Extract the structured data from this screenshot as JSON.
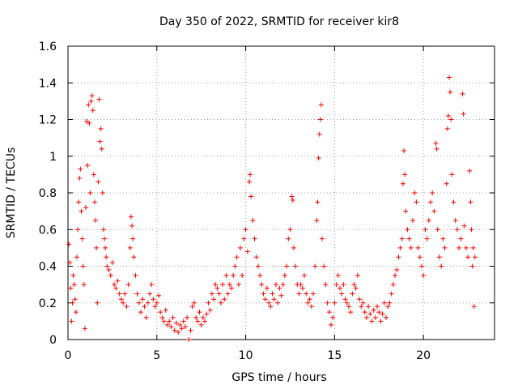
{
  "chart_data": {
    "type": "scatter",
    "title": "Day 350 of 2022, SRMTID for receiver kir8",
    "xlabel": "GPS time / hours",
    "ylabel": "SRMTID / TECUs",
    "xlim": [
      0,
      24
    ],
    "ylim": [
      0,
      1.6
    ],
    "xticks": [
      0,
      5,
      10,
      15,
      20
    ],
    "yticks": [
      0,
      0.2,
      0.4,
      0.6,
      0.8,
      1,
      1.2,
      1.4,
      1.6
    ],
    "xtick_labels": [
      "0",
      "5",
      "10",
      "15",
      "20"
    ],
    "ytick_labels": [
      "0",
      "0.2",
      "0.4",
      "0.6",
      "0.8",
      "1",
      "1.2",
      "1.4",
      "1.6"
    ],
    "grid": true,
    "marker": "+",
    "color": "#ff0000",
    "series": [
      {
        "name": "SRMTID",
        "points": [
          [
            0.05,
            0.52
          ],
          [
            0.1,
            0.42
          ],
          [
            0.15,
            0.28
          ],
          [
            0.2,
            0.1
          ],
          [
            0.25,
            0.2
          ],
          [
            0.3,
            0.35
          ],
          [
            0.35,
            0.3
          ],
          [
            0.4,
            0.22
          ],
          [
            0.45,
            0.15
          ],
          [
            0.5,
            0.45
          ],
          [
            0.55,
            0.6
          ],
          [
            0.6,
            0.75
          ],
          [
            0.65,
            0.88
          ],
          [
            0.7,
            0.93
          ],
          [
            0.75,
            0.7
          ],
          [
            0.8,
            0.55
          ],
          [
            0.85,
            0.4
          ],
          [
            0.9,
            0.3
          ],
          [
            0.95,
            0.06
          ],
          [
            1.0,
            0.72
          ],
          [
            1.05,
            1.19
          ],
          [
            1.1,
            0.95
          ],
          [
            1.15,
            1.28
          ],
          [
            1.2,
            1.18
          ],
          [
            1.25,
            0.8
          ],
          [
            1.3,
            1.3
          ],
          [
            1.35,
            1.33
          ],
          [
            1.4,
            1.25
          ],
          [
            1.45,
            0.9
          ],
          [
            1.5,
            0.75
          ],
          [
            1.55,
            0.65
          ],
          [
            1.6,
            0.5
          ],
          [
            1.65,
            0.2
          ],
          [
            1.7,
            0.86
          ],
          [
            1.75,
            1.31
          ],
          [
            1.8,
            1.08
          ],
          [
            1.85,
            1.15
          ],
          [
            1.9,
            1.04
          ],
          [
            1.95,
            0.8
          ],
          [
            2.0,
            0.6
          ],
          [
            2.05,
            0.55
          ],
          [
            2.1,
            0.5
          ],
          [
            2.15,
            0.45
          ],
          [
            2.2,
            0.4
          ],
          [
            2.3,
            0.38
          ],
          [
            2.4,
            0.35
          ],
          [
            2.5,
            0.42
          ],
          [
            2.6,
            0.3
          ],
          [
            2.7,
            0.28
          ],
          [
            2.8,
            0.32
          ],
          [
            2.9,
            0.25
          ],
          [
            3.0,
            0.22
          ],
          [
            3.1,
            0.2
          ],
          [
            3.2,
            0.25
          ],
          [
            3.3,
            0.18
          ],
          [
            3.4,
            0.3
          ],
          [
            3.5,
            0.5
          ],
          [
            3.55,
            0.67
          ],
          [
            3.6,
            0.62
          ],
          [
            3.65,
            0.55
          ],
          [
            3.7,
            0.45
          ],
          [
            3.8,
            0.35
          ],
          [
            3.9,
            0.25
          ],
          [
            4.0,
            0.2
          ],
          [
            4.1,
            0.15
          ],
          [
            4.2,
            0.22
          ],
          [
            4.3,
            0.18
          ],
          [
            4.4,
            0.12
          ],
          [
            4.5,
            0.2
          ],
          [
            4.6,
            0.25
          ],
          [
            4.7,
            0.3
          ],
          [
            4.8,
            0.22
          ],
          [
            4.9,
            0.18
          ],
          [
            5.0,
            0.2
          ],
          [
            5.1,
            0.24
          ],
          [
            5.2,
            0.15
          ],
          [
            5.3,
            0.12
          ],
          [
            5.4,
            0.1
          ],
          [
            5.5,
            0.16
          ],
          [
            5.6,
            0.08
          ],
          [
            5.7,
            0.1
          ],
          [
            5.8,
            0.07
          ],
          [
            5.9,
            0.12
          ],
          [
            6.0,
            0.05
          ],
          [
            6.1,
            0.09
          ],
          [
            6.2,
            0.04
          ],
          [
            6.3,
            0.08
          ],
          [
            6.4,
            0.06
          ],
          [
            6.5,
            0.1
          ],
          [
            6.6,
            0.07
          ],
          [
            6.7,
            0.12
          ],
          [
            6.8,
            0.0
          ],
          [
            6.9,
            0.05
          ],
          [
            7.0,
            0.18
          ],
          [
            7.1,
            0.2
          ],
          [
            7.2,
            0.12
          ],
          [
            7.3,
            0.1
          ],
          [
            7.4,
            0.15
          ],
          [
            7.5,
            0.08
          ],
          [
            7.6,
            0.12
          ],
          [
            7.7,
            0.1
          ],
          [
            7.8,
            0.14
          ],
          [
            7.9,
            0.2
          ],
          [
            8.0,
            0.16
          ],
          [
            8.1,
            0.25
          ],
          [
            8.2,
            0.22
          ],
          [
            8.3,
            0.3
          ],
          [
            8.4,
            0.28
          ],
          [
            8.5,
            0.25
          ],
          [
            8.6,
            0.2
          ],
          [
            8.7,
            0.3
          ],
          [
            8.8,
            0.22
          ],
          [
            8.9,
            0.35
          ],
          [
            9.0,
            0.25
          ],
          [
            9.1,
            0.3
          ],
          [
            9.2,
            0.28
          ],
          [
            9.3,
            0.35
          ],
          [
            9.4,
            0.4
          ],
          [
            9.5,
            0.45
          ],
          [
            9.6,
            0.3
          ],
          [
            9.7,
            0.5
          ],
          [
            9.8,
            0.35
          ],
          [
            9.9,
            0.55
          ],
          [
            10.0,
            0.6
          ],
          [
            10.1,
            0.48
          ],
          [
            10.2,
            0.86
          ],
          [
            10.25,
            0.9
          ],
          [
            10.3,
            0.78
          ],
          [
            10.4,
            0.65
          ],
          [
            10.5,
            0.55
          ],
          [
            10.6,
            0.45
          ],
          [
            10.7,
            0.4
          ],
          [
            10.8,
            0.35
          ],
          [
            10.9,
            0.3
          ],
          [
            11.0,
            0.25
          ],
          [
            11.1,
            0.22
          ],
          [
            11.2,
            0.28
          ],
          [
            11.3,
            0.2
          ],
          [
            11.4,
            0.18
          ],
          [
            11.5,
            0.25
          ],
          [
            11.6,
            0.22
          ],
          [
            11.7,
            0.3
          ],
          [
            11.8,
            0.2
          ],
          [
            11.9,
            0.28
          ],
          [
            12.0,
            0.24
          ],
          [
            12.1,
            0.3
          ],
          [
            12.2,
            0.35
          ],
          [
            12.3,
            0.4
          ],
          [
            12.4,
            0.55
          ],
          [
            12.5,
            0.6
          ],
          [
            12.6,
            0.78
          ],
          [
            12.65,
            0.76
          ],
          [
            12.7,
            0.5
          ],
          [
            12.8,
            0.4
          ],
          [
            12.9,
            0.3
          ],
          [
            13.0,
            0.25
          ],
          [
            13.1,
            0.3
          ],
          [
            13.2,
            0.28
          ],
          [
            13.3,
            0.35
          ],
          [
            13.4,
            0.25
          ],
          [
            13.5,
            0.2
          ],
          [
            13.6,
            0.22
          ],
          [
            13.7,
            0.18
          ],
          [
            13.8,
            0.25
          ],
          [
            13.9,
            0.4
          ],
          [
            14.0,
            0.65
          ],
          [
            14.05,
            0.75
          ],
          [
            14.1,
            0.99
          ],
          [
            14.15,
            1.12
          ],
          [
            14.2,
            1.2
          ],
          [
            14.25,
            1.28
          ],
          [
            14.3,
            0.55
          ],
          [
            14.4,
            0.4
          ],
          [
            14.5,
            0.3
          ],
          [
            14.6,
            0.2
          ],
          [
            14.7,
            0.15
          ],
          [
            14.8,
            0.08
          ],
          [
            14.9,
            0.12
          ],
          [
            15.0,
            0.2
          ],
          [
            15.1,
            0.3
          ],
          [
            15.2,
            0.35
          ],
          [
            15.3,
            0.28
          ],
          [
            15.4,
            0.25
          ],
          [
            15.5,
            0.3
          ],
          [
            15.6,
            0.22
          ],
          [
            15.7,
            0.2
          ],
          [
            15.8,
            0.18
          ],
          [
            15.9,
            0.15
          ],
          [
            16.0,
            0.25
          ],
          [
            16.1,
            0.3
          ],
          [
            16.2,
            0.28
          ],
          [
            16.3,
            0.35
          ],
          [
            16.4,
            0.22
          ],
          [
            16.5,
            0.18
          ],
          [
            16.6,
            0.2
          ],
          [
            16.7,
            0.15
          ],
          [
            16.8,
            0.12
          ],
          [
            16.9,
            0.18
          ],
          [
            17.0,
            0.14
          ],
          [
            17.1,
            0.1
          ],
          [
            17.2,
            0.16
          ],
          [
            17.3,
            0.12
          ],
          [
            17.4,
            0.18
          ],
          [
            17.5,
            0.15
          ],
          [
            17.6,
            0.1
          ],
          [
            17.7,
            0.14
          ],
          [
            17.8,
            0.2
          ],
          [
            17.9,
            0.12
          ],
          [
            18.0,
            0.18
          ],
          [
            18.1,
            0.2
          ],
          [
            18.2,
            0.25
          ],
          [
            18.3,
            0.3
          ],
          [
            18.4,
            0.35
          ],
          [
            18.5,
            0.38
          ],
          [
            18.6,
            0.45
          ],
          [
            18.7,
            0.5
          ],
          [
            18.8,
            0.55
          ],
          [
            18.85,
            0.85
          ],
          [
            18.9,
            1.03
          ],
          [
            18.95,
            0.9
          ],
          [
            19.0,
            0.7
          ],
          [
            19.1,
            0.6
          ],
          [
            19.2,
            0.55
          ],
          [
            19.3,
            0.5
          ],
          [
            19.4,
            0.65
          ],
          [
            19.5,
            0.8
          ],
          [
            19.6,
            0.75
          ],
          [
            19.7,
            0.5
          ],
          [
            19.8,
            0.45
          ],
          [
            19.9,
            0.4
          ],
          [
            20.0,
            0.35
          ],
          [
            20.1,
            0.6
          ],
          [
            20.2,
            0.55
          ],
          [
            20.3,
            0.65
          ],
          [
            20.4,
            0.75
          ],
          [
            20.5,
            0.8
          ],
          [
            20.6,
            0.7
          ],
          [
            20.7,
            1.07
          ],
          [
            20.75,
            1.04
          ],
          [
            20.8,
            0.6
          ],
          [
            20.9,
            0.45
          ],
          [
            21.0,
            0.4
          ],
          [
            21.1,
            0.55
          ],
          [
            21.2,
            0.5
          ],
          [
            21.3,
            0.85
          ],
          [
            21.35,
            1.15
          ],
          [
            21.4,
            1.22
          ],
          [
            21.45,
            1.43
          ],
          [
            21.5,
            1.35
          ],
          [
            21.55,
            1.2
          ],
          [
            21.6,
            0.9
          ],
          [
            21.7,
            0.75
          ],
          [
            21.8,
            0.65
          ],
          [
            21.9,
            0.6
          ],
          [
            22.0,
            0.5
          ],
          [
            22.1,
            0.55
          ],
          [
            22.2,
            1.34
          ],
          [
            22.25,
            1.23
          ],
          [
            22.3,
            0.62
          ],
          [
            22.4,
            0.5
          ],
          [
            22.5,
            0.45
          ],
          [
            22.6,
            0.92
          ],
          [
            22.65,
            0.75
          ],
          [
            22.7,
            0.6
          ],
          [
            22.75,
            0.4
          ],
          [
            22.8,
            0.5
          ],
          [
            22.85,
            0.18
          ],
          [
            22.9,
            0.45
          ]
        ]
      }
    ]
  }
}
